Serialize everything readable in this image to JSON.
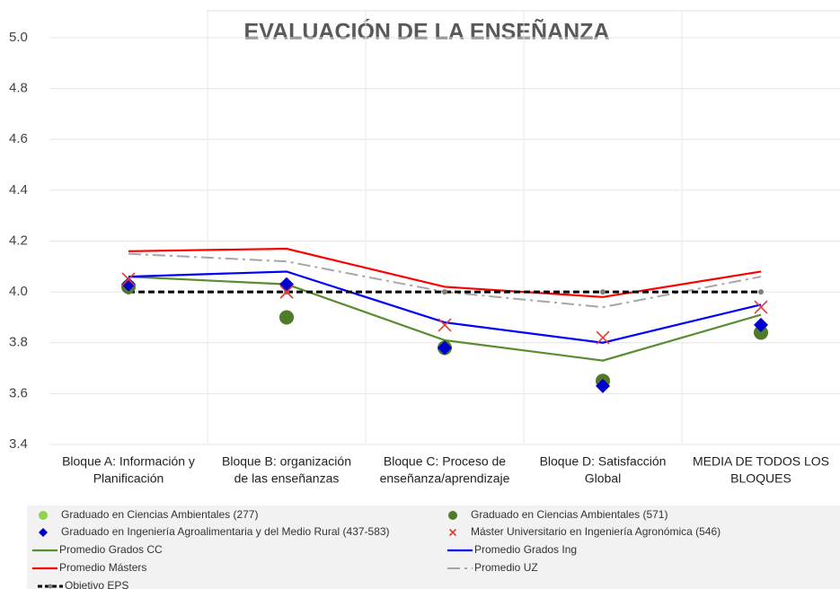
{
  "chart_data": {
    "type": "line",
    "title": "EVALUACIÓN DE LA ENSEÑANZA",
    "categories": [
      [
        "Bloque A: Información y",
        "Planificación"
      ],
      [
        "Bloque B: organización",
        "de las enseñanzas"
      ],
      [
        "Bloque C: Proceso de",
        "enseñanza/aprendizaje"
      ],
      [
        "Bloque D: Satisfacción",
        "Global"
      ],
      [
        "MEDIA DE TODOS LOS",
        "BLOQUES"
      ]
    ],
    "ylim": [
      3.4,
      5.0
    ],
    "yticks": [
      {
        "value": 3.4,
        "label": "3.4"
      },
      {
        "value": 3.6,
        "label": "3.6"
      },
      {
        "value": 3.8,
        "label": "3.8"
      },
      {
        "value": 4.0,
        "label": "4.0"
      },
      {
        "value": 4.2,
        "label": "4.2"
      },
      {
        "value": 4.4,
        "label": "4.4"
      },
      {
        "value": 4.6,
        "label": "4.6"
      },
      {
        "value": 4.8,
        "label": "4.8"
      },
      {
        "value": 5.0,
        "label": "5.0"
      }
    ],
    "grid": true,
    "legend": "bottom",
    "series": [
      {
        "name": "Graduado en Ciencias Ambientales (277)",
        "color": "#92d050",
        "marker": "circle",
        "values": [
          null,
          null,
          null,
          null,
          null
        ]
      },
      {
        "name": "Graduado en Ciencias Ambientales (571)",
        "color": "#4e7a2a",
        "marker": "circle",
        "values": [
          4.02,
          3.9,
          3.78,
          3.65,
          3.84
        ]
      },
      {
        "name": "Graduado en Ingeniería Agroalimentaria y del Medio Rural (437-583)",
        "color": "#0000cc",
        "marker": "diamond",
        "values": [
          4.03,
          4.03,
          3.78,
          3.63,
          3.87
        ]
      },
      {
        "name": "Máster Universitario en Ingeniería Agronómica (546)",
        "color": "#e53935",
        "marker": "x",
        "values": [
          4.05,
          4.0,
          3.87,
          3.82,
          3.94
        ]
      },
      {
        "name": "Promedio Grados CC",
        "color": "#5b8c32",
        "line": "solid",
        "values": [
          4.06,
          4.03,
          3.81,
          3.73,
          3.91
        ]
      },
      {
        "name": "Promedio Grados Ing",
        "color": "#0000ff",
        "line": "solid",
        "values": [
          4.06,
          4.08,
          3.88,
          3.8,
          3.95
        ]
      },
      {
        "name": "Promedio Másters",
        "color": "#ff0000",
        "line": "solid",
        "values": [
          4.16,
          4.17,
          4.02,
          3.98,
          4.08
        ]
      },
      {
        "name": "Promedio UZ",
        "color": "#a6a6a6",
        "line": "dashdot",
        "values": [
          4.15,
          4.12,
          4.0,
          3.94,
          4.06
        ]
      },
      {
        "name": "Objetivo EPS",
        "color": "#000000",
        "line": "dashed",
        "marker": "dot",
        "values": [
          4.0,
          4.0,
          4.0,
          4.0,
          4.0
        ]
      }
    ]
  }
}
